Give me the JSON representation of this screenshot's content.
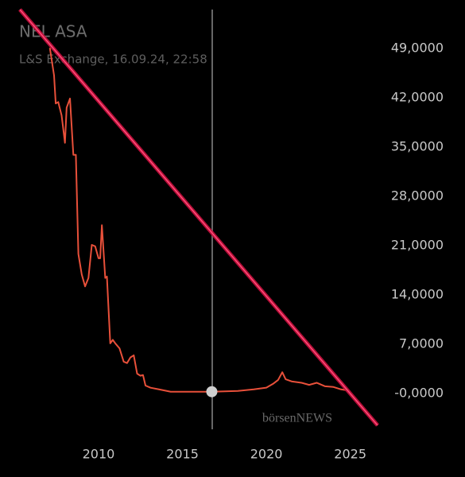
{
  "chart_data": {
    "type": "line",
    "title": "NEL ASA",
    "subtitle": "L&S Exchange, 16.09.24, 22:58",
    "watermark": "börsenNEWS",
    "x": [
      2007.1,
      2007.35,
      2007.45,
      2007.6,
      2007.8,
      2008.0,
      2008.1,
      2008.3,
      2008.5,
      2008.65,
      2008.8,
      2009.0,
      2009.2,
      2009.4,
      2009.6,
      2009.8,
      2010.0,
      2010.1,
      2010.2,
      2010.4,
      2010.5,
      2010.7,
      2010.85,
      2011.0,
      2011.25,
      2011.5,
      2011.7,
      2011.9,
      2012.1,
      2012.3,
      2012.5,
      2012.65,
      2012.8,
      2013.1,
      2013.6,
      2014.3,
      2015.5,
      2016.75,
      2018.3,
      2019.25,
      2020.0,
      2020.4,
      2020.7,
      2020.95,
      2021.15,
      2021.5,
      2022.1,
      2022.55,
      2023.0,
      2023.5,
      2024.0,
      2024.45,
      2024.75
    ],
    "series": [
      {
        "name": "NEL ASA",
        "color": "#e8503a",
        "values": [
          49.1,
          45.2,
          41.2,
          41.4,
          39.5,
          35.6,
          40.6,
          41.9,
          33.9,
          33.9,
          19.8,
          16.9,
          15.2,
          16.4,
          21.1,
          20.9,
          19.2,
          19.2,
          23.9,
          16.4,
          16.6,
          7.1,
          7.6,
          7.1,
          6.4,
          4.5,
          4.3,
          5.1,
          5.4,
          2.8,
          2.5,
          2.6,
          1.1,
          0.8,
          0.56,
          0.23,
          0.23,
          0.23,
          0.34,
          0.56,
          0.8,
          1.35,
          1.9,
          3.0,
          2.0,
          1.7,
          1.5,
          1.2,
          1.5,
          1.0,
          0.9,
          0.56,
          0.45
        ]
      }
    ],
    "xlim": [
      2004.13,
      2026.2
    ],
    "xticks": [
      2010,
      2015,
      2020,
      2025
    ],
    "ylim": [
      -5,
      55
    ],
    "yticks": [
      {
        "value": 0,
        "label": "-0,0000"
      },
      {
        "value": 7,
        "label": "7,0000"
      },
      {
        "value": 14,
        "label": "14,0000"
      },
      {
        "value": 21,
        "label": "21,0000"
      },
      {
        "value": 28,
        "label": "28,0000"
      },
      {
        "value": 35,
        "label": "35,0000"
      },
      {
        "value": 42,
        "label": "42,0000"
      },
      {
        "value": 49,
        "label": "49,0000"
      }
    ],
    "grid": false
  }
}
